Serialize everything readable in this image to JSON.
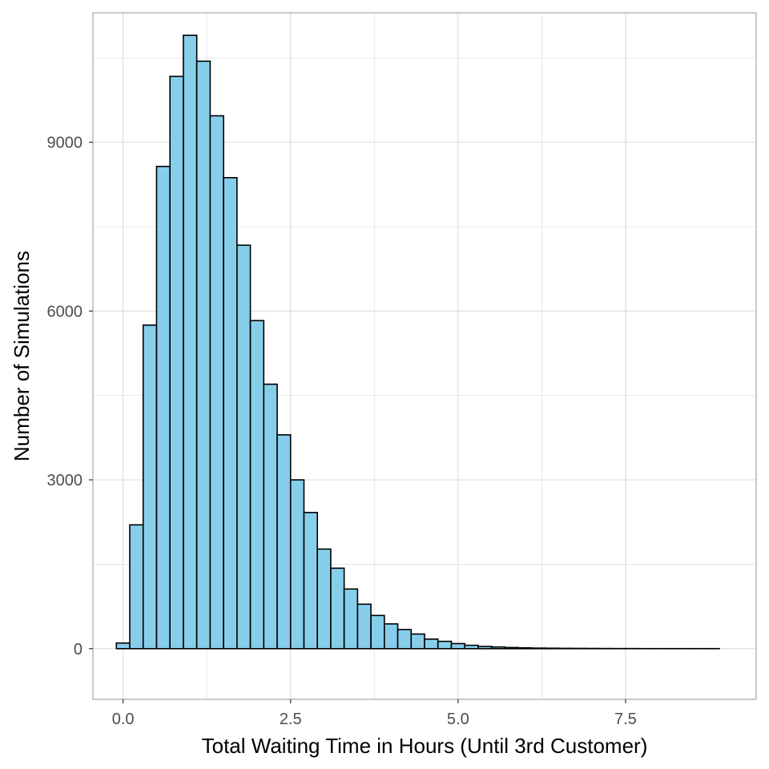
{
  "chart_data": {
    "type": "bar",
    "subtype": "histogram",
    "title": "",
    "xlabel": "Total Waiting Time in Hours (Until 3rd Customer)",
    "ylabel": "Number of Simulations",
    "xlim": [
      -0.45,
      9.45
    ],
    "ylim": [
      -900,
      11300
    ],
    "x_ticks": [
      "0.0",
      "2.5",
      "5.0",
      "7.5"
    ],
    "x_tick_values": [
      0,
      2.5,
      5,
      7.5
    ],
    "y_ticks": [
      "0",
      "3000",
      "6000",
      "9000"
    ],
    "y_tick_values": [
      0,
      3000,
      6000,
      9000
    ],
    "grid": true,
    "bin_width": 0.2,
    "bin_centers": [
      0.0,
      0.2,
      0.4,
      0.6,
      0.8,
      1.0,
      1.2,
      1.4,
      1.6,
      1.8,
      2.0,
      2.2,
      2.4,
      2.6,
      2.8,
      3.0,
      3.2,
      3.4,
      3.6,
      3.8,
      4.0,
      4.2,
      4.4,
      4.6,
      4.8,
      5.0,
      5.2,
      5.4,
      5.6,
      5.8,
      6.0,
      6.2,
      6.4,
      6.6,
      6.8,
      7.0,
      7.2,
      7.4,
      7.6,
      7.8,
      8.0,
      8.2,
      8.4,
      8.6,
      8.8
    ],
    "values": [
      100,
      2200,
      5750,
      8570,
      10170,
      10900,
      10440,
      9470,
      8370,
      7170,
      5830,
      4700,
      3800,
      3000,
      2420,
      1770,
      1430,
      1060,
      790,
      590,
      440,
      340,
      260,
      170,
      130,
      90,
      60,
      40,
      30,
      20,
      15,
      10,
      8,
      6,
      5,
      4,
      3,
      2,
      2,
      1,
      1,
      1,
      1,
      1,
      1
    ],
    "bar_fill": "#87ceeb",
    "bar_stroke": "#000000",
    "grid_color": "#dedede",
    "panel_border_color": "#b3b3b3"
  }
}
